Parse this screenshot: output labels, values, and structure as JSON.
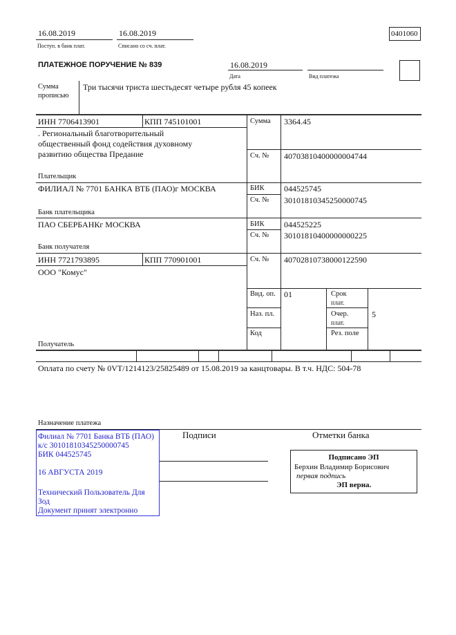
{
  "header": {
    "received_date": "16.08.2019",
    "received_label": "Поступ. в банк плат.",
    "debited_date": "16.08.2019",
    "debited_label": "Списано со сч. плат.",
    "form_code": "0401060"
  },
  "title": "ПЛАТЕЖНОЕ ПОРУЧЕНИЕ № 839",
  "date": "16.08.2019",
  "date_label": "Дата",
  "payment_type_label": "Вид платежа",
  "amount_words_label_1": "Сумма",
  "amount_words_label_2": "прописью",
  "amount_words": "Три тысячи триста шестьдесят четыре рубля 45 копеек",
  "payer": {
    "inn": "ИНН 7706413901",
    "kpp": "КПП 745101001",
    "name_lines": [
      ". Региональный благотворительный",
      "общественный фонд содействия духовному",
      "развитию общества Предание"
    ],
    "label": "Плательщик",
    "account": "40703810400000004744"
  },
  "amount_label": "Сумма",
  "amount": "3364.45",
  "account_label": "Сч. №",
  "bik_label": "БИК",
  "payer_bank": {
    "name": "ФИЛИАЛ № 7701 БАНКА ВТБ (ПАО)г МОСКВА",
    "label": "Банк плательщика",
    "bik": "044525745",
    "account": "30101810345250000745"
  },
  "payee_bank": {
    "name": "ПАО СБЕРБАНКг МОСКВА",
    "label": "Банк получателя",
    "bik": "044525225",
    "account": "30101810400000000225"
  },
  "payee": {
    "inn": "ИНН 7721793895",
    "kpp": "КПП 770901001",
    "name": "ООО \"Комус\"",
    "label": "Получатель",
    "account": "40702810738000122590"
  },
  "codes": {
    "op_type_label": "Вид. оп.",
    "op_type": "01",
    "purpose_code_label": "Наз. пл.",
    "code_label": "Код",
    "term_label_1": "Срок",
    "term_label_2": "плат.",
    "priority_label_1": "Очер.",
    "priority_label_2": "плат.",
    "priority": "5",
    "reserve_label": "Рез. поле"
  },
  "purpose": "Оплата по счету № 0VT/1214123/25825489 от 15.08.2019 за канцтовары. В т.ч. НДС: 504-78",
  "purpose_label": "Назначение платежа",
  "stamp": {
    "lines": [
      "Филиал № 7701 Банка ВТБ (ПАО)",
      "к/с 30101810345250000745",
      "БИК 044525745",
      "16 АВГУСТА 2019",
      "Технический Пользователь Для",
      "Зод",
      "Документ принят электронно"
    ],
    "color": "#2222cc"
  },
  "signatures_label": "Подписи",
  "bank_marks_label": "Отметки банка",
  "esign": {
    "title": "Подписано ЭП",
    "name": "Берхин Владимир Борисович",
    "role": "первая подпись",
    "status": "ЭП верна."
  }
}
